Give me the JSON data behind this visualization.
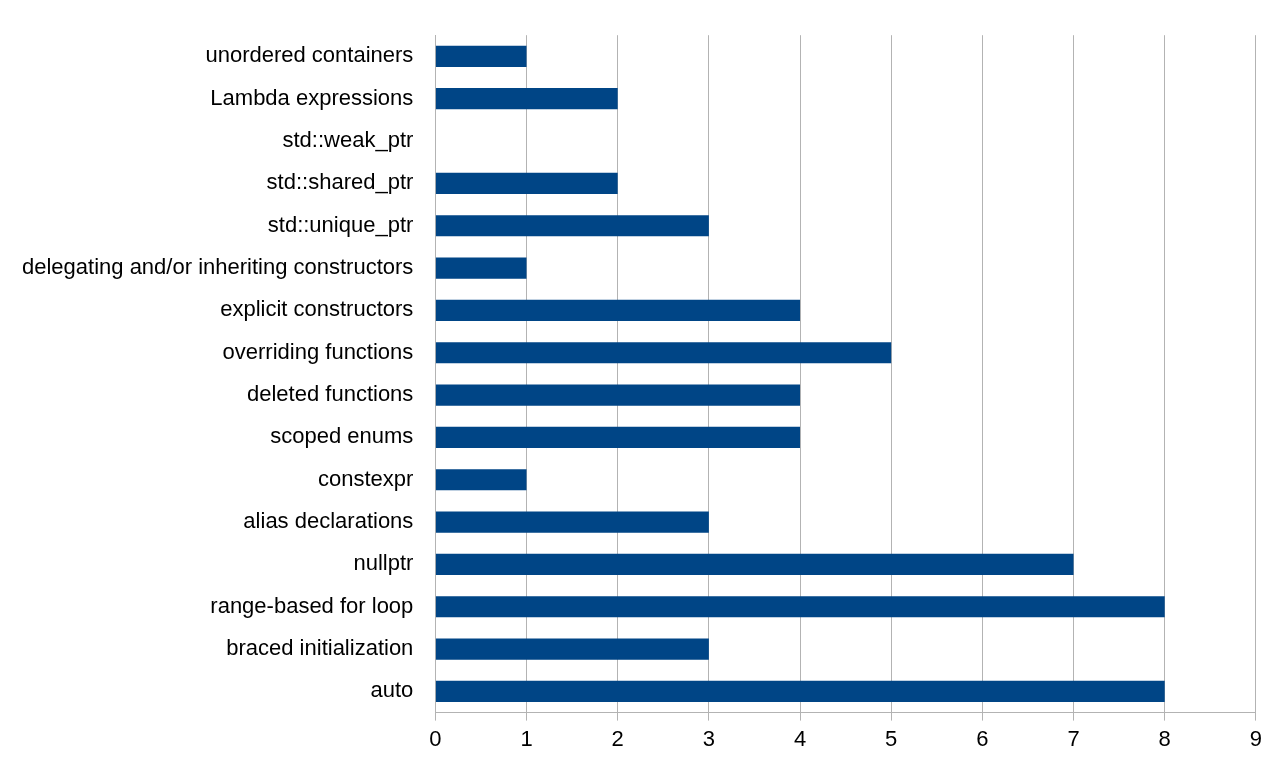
{
  "chart_data": {
    "type": "bar",
    "orientation": "horizontal",
    "categories": [
      "unordered containers",
      "Lambda expressions",
      "std::weak_ptr",
      "std::shared_ptr",
      "std::unique_ptr",
      "delegating and/or inheriting constructors",
      "explicit constructors",
      "overriding functions",
      "deleted functions",
      "scoped enums",
      "constexpr",
      "alias declarations",
      "nullptr",
      "range-based for loop",
      "braced initialization",
      "auto"
    ],
    "values": [
      1,
      2,
      0,
      2,
      3,
      1,
      4,
      5,
      4,
      4,
      1,
      3,
      7,
      8,
      3,
      8
    ],
    "color": "#004586",
    "xlim": [
      0,
      9
    ],
    "xticks": [
      0,
      1,
      2,
      3,
      4,
      5,
      6,
      7,
      8,
      9
    ],
    "grid": "x"
  }
}
